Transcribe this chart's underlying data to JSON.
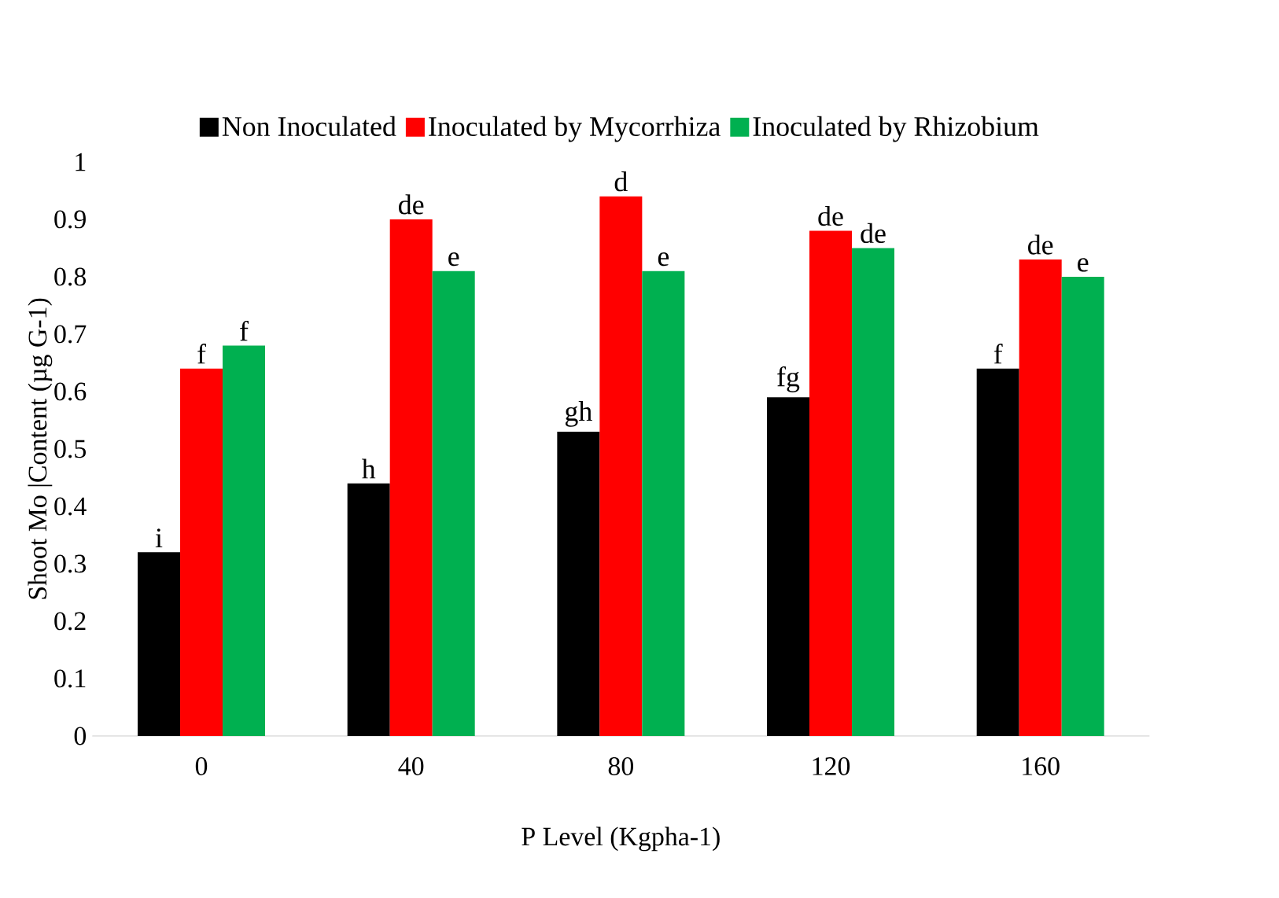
{
  "chart_data": {
    "type": "bar",
    "xlabel": "P Level  (Kgpha-1)",
    "ylabel": "Shoot Mo |Content (µg G-1)",
    "categories": [
      "0",
      "40",
      "80",
      "120",
      "160"
    ],
    "series": [
      {
        "name": "Non Inoculated",
        "color": "#000000",
        "values": [
          0.32,
          0.44,
          0.53,
          0.59,
          0.64
        ],
        "value_labels": [
          "i",
          "h",
          "gh",
          "fg",
          "f"
        ]
      },
      {
        "name": "Inoculated by Mycorrhiza",
        "color": "#ff0000",
        "values": [
          0.64,
          0.9,
          0.94,
          0.88,
          0.83
        ],
        "value_labels": [
          "f",
          "de",
          "d",
          "de",
          "de"
        ]
      },
      {
        "name": "Inoculated by Rhizobium",
        "color": "#00b050",
        "values": [
          0.68,
          0.81,
          0.81,
          0.85,
          0.8
        ],
        "value_labels": [
          "f",
          "e",
          "e",
          "de",
          "e"
        ]
      }
    ],
    "ylim": [
      0,
      1
    ],
    "yticks": [
      0,
      0.1,
      0.2,
      0.3,
      0.4,
      0.5,
      0.6,
      0.7,
      0.8,
      0.9,
      1
    ],
    "grid": false,
    "legend": "top"
  }
}
